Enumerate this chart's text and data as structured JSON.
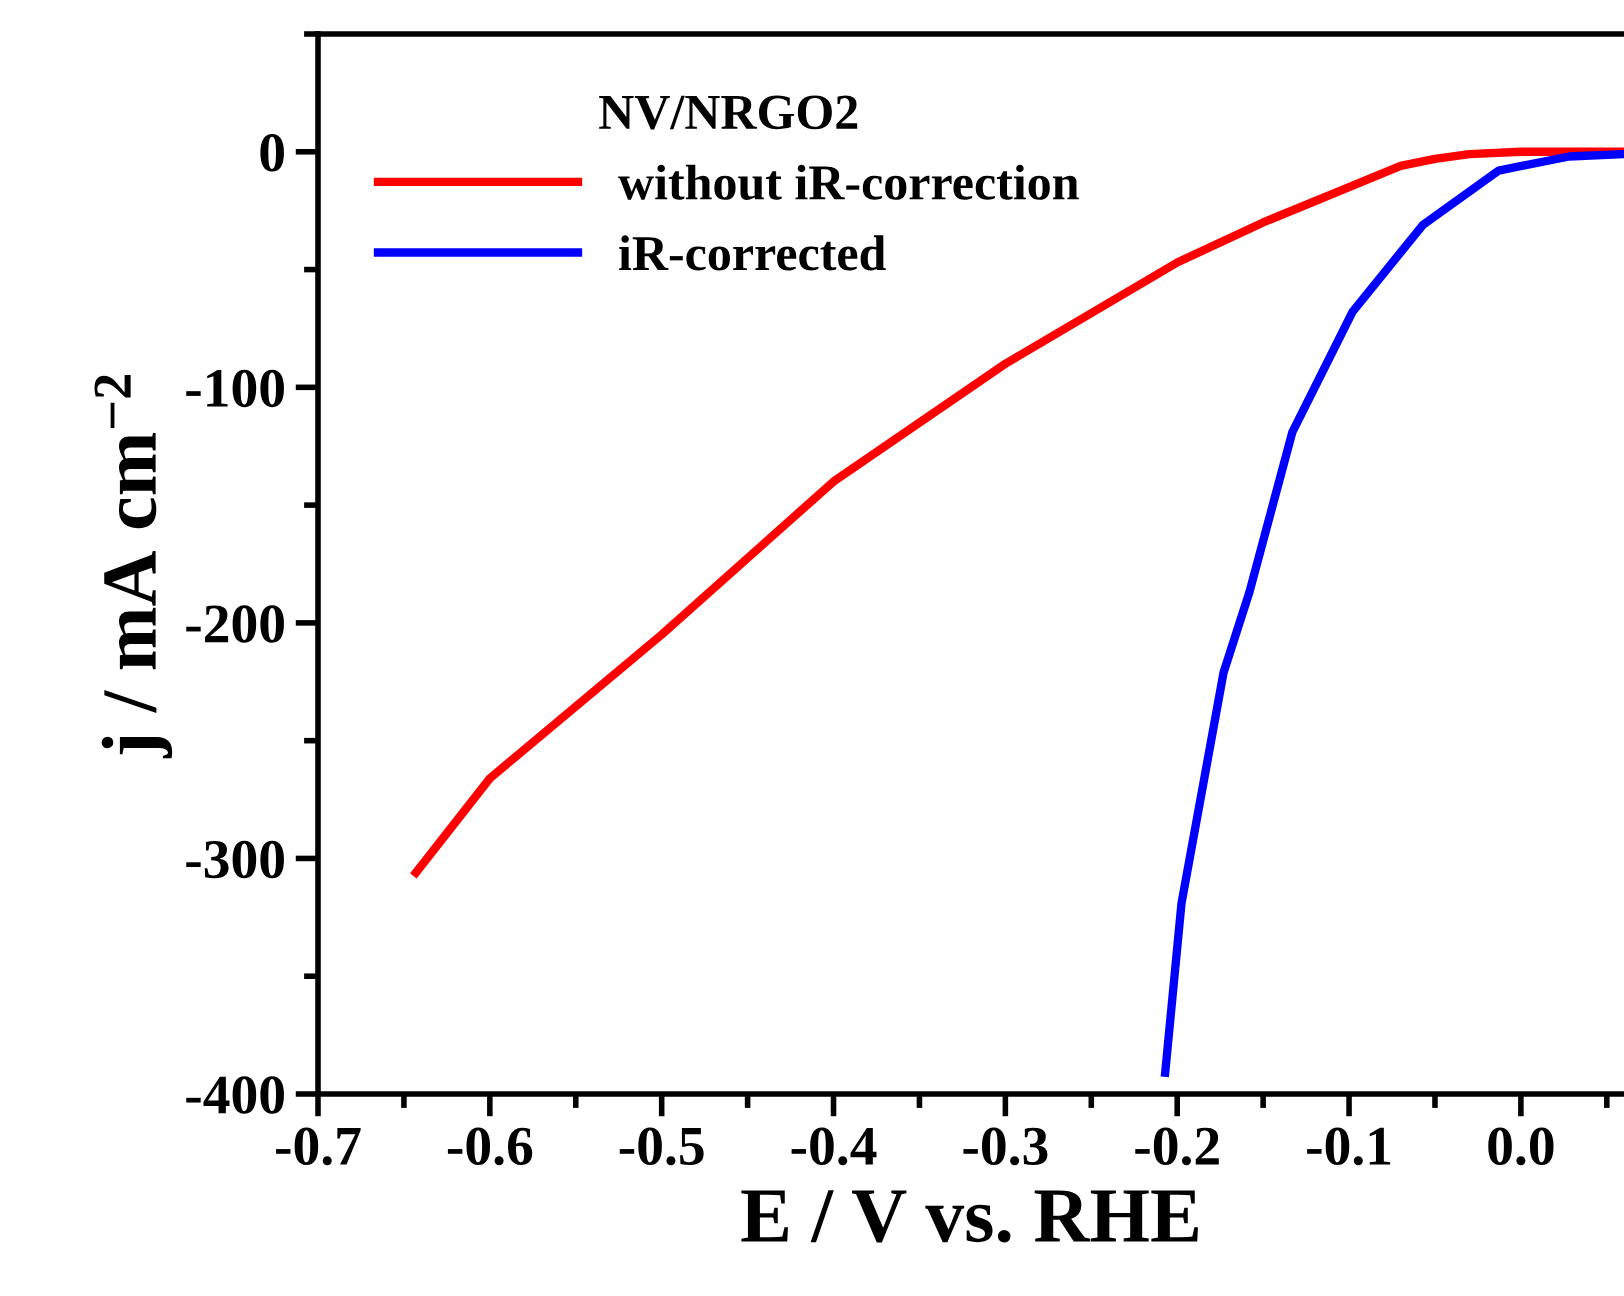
{
  "chart_data": {
    "type": "line",
    "xlabel": "E / V vs. RHE",
    "ylabel": "j / mA cm$^{−2}$",
    "legend_title": "NV/NRGO2",
    "xlim": [
      -0.7,
      0.06
    ],
    "xticks": [
      {
        "value": -0.7,
        "label": "-0.7"
      },
      {
        "value": -0.6,
        "label": "-0.6"
      },
      {
        "value": -0.5,
        "label": "-0.5"
      },
      {
        "value": -0.4,
        "label": "-0.4"
      },
      {
        "value": -0.3,
        "label": "-0.3"
      },
      {
        "value": -0.2,
        "label": "-0.2"
      },
      {
        "value": -0.1,
        "label": "-0.1"
      },
      {
        "value": 0.0,
        "label": "0.0"
      }
    ],
    "ylim": [
      -400,
      50
    ],
    "yticks": [
      {
        "value": -400,
        "label": "-400"
      },
      {
        "value": -300,
        "label": "-300"
      },
      {
        "value": -200,
        "label": "-200"
      },
      {
        "value": -100,
        "label": "-100"
      },
      0
    ],
    "legend": "top left",
    "grid": false,
    "marker": "none",
    "line_style": "solid",
    "series": [
      {
        "name": "without iR-correction",
        "color": "#ff0000",
        "x": [
          -0.643,
          -0.6,
          -0.5,
          -0.4,
          -0.3,
          -0.2,
          -0.15,
          -0.1,
          -0.07,
          -0.05,
          -0.03,
          0.0,
          0.06
        ],
        "values": [
          -306,
          -266,
          -205,
          -140,
          -90,
          -47,
          -30,
          -15,
          -6,
          -3,
          -1,
          0,
          0
        ]
      },
      {
        "name": "iR-corrected",
        "color": "#0000ff",
        "x": [
          -0.207,
          -0.1975,
          -0.173,
          -0.158,
          -0.133,
          -0.098,
          -0.057,
          -0.013,
          0.028,
          0.06
        ],
        "values": [
          -391,
          -319,
          -221,
          -187,
          -119,
          -68,
          -31,
          -8,
          -2,
          -1
        ]
      }
    ]
  }
}
